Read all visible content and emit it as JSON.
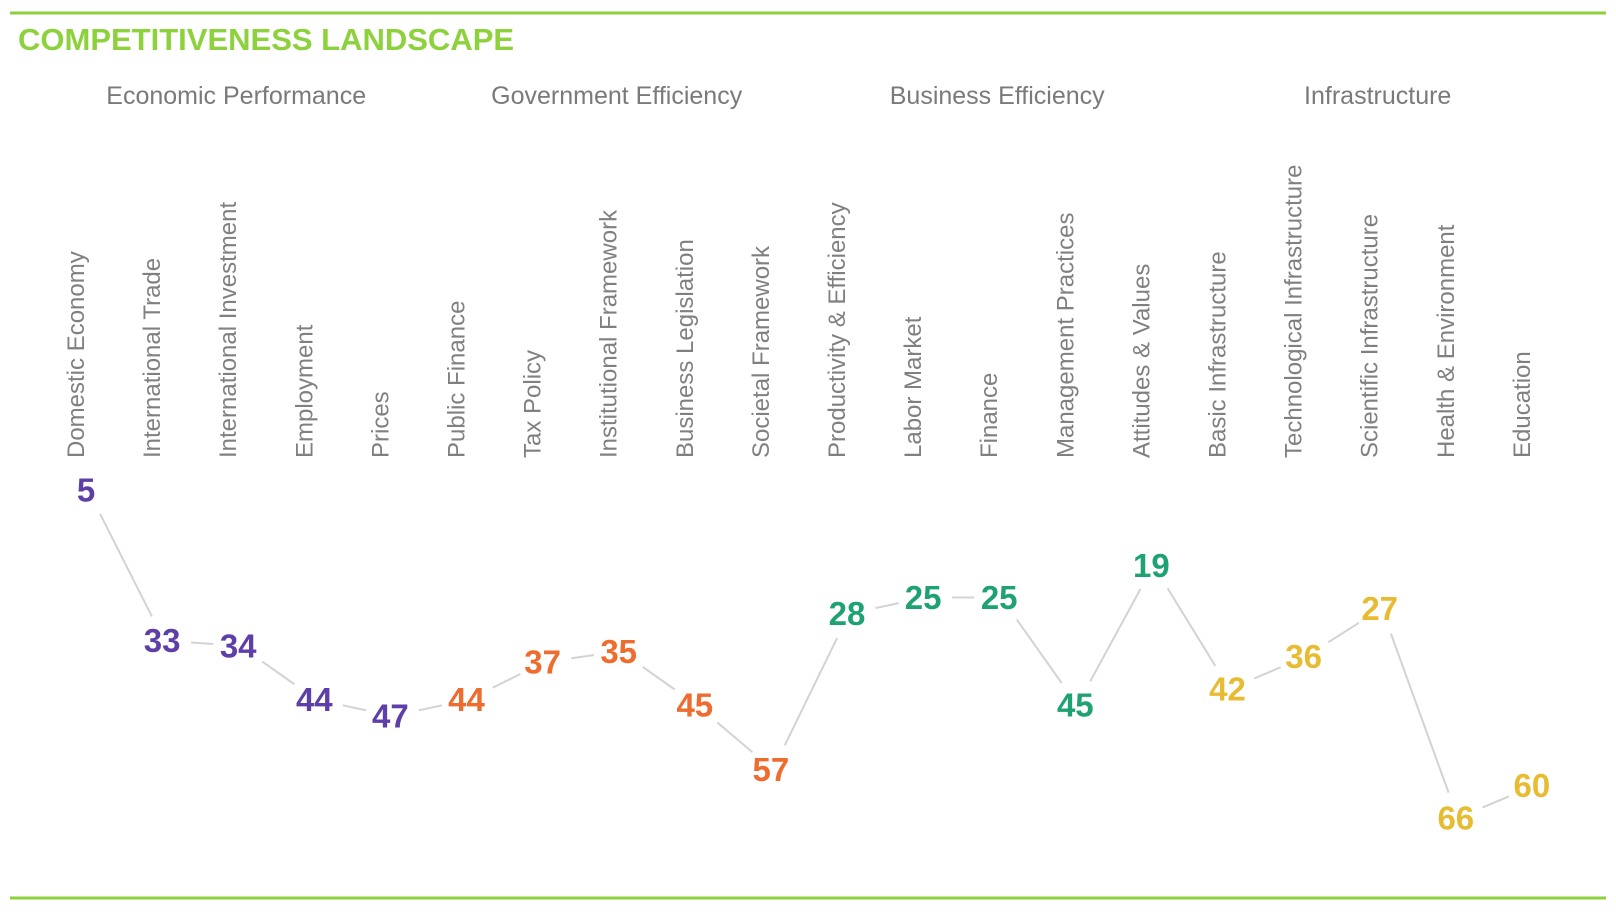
{
  "title": "COMPETITIVENESS LANDSCAPE",
  "colors": {
    "accent": "#8DD13D",
    "connector": "#D3D3D3",
    "economic": "#5E3FA8",
    "government": "#EE6C2E",
    "business": "#1FA272",
    "infrastructure": "#E8BC32"
  },
  "chart_data": {
    "type": "line",
    "title": "COMPETITIVENESS LANDSCAPE",
    "y_reversed": true,
    "ylim": [
      0,
      70
    ],
    "grid": false,
    "groups": [
      {
        "name": "Economic Performance",
        "color_key": "economic"
      },
      {
        "name": "Government Efficiency",
        "color_key": "government"
      },
      {
        "name": "Business Efficiency",
        "color_key": "business"
      },
      {
        "name": "Infrastructure",
        "color_key": "infrastructure"
      }
    ],
    "categories": [
      {
        "label": "Domestic Economy",
        "value": 5,
        "group": 0
      },
      {
        "label": "International Trade",
        "value": 33,
        "group": 0
      },
      {
        "label": "International Investment",
        "value": 34,
        "group": 0
      },
      {
        "label": "Employment",
        "value": 44,
        "group": 0
      },
      {
        "label": "Prices",
        "value": 47,
        "group": 0
      },
      {
        "label": "Public Finance",
        "value": 44,
        "group": 1
      },
      {
        "label": "Tax Policy",
        "value": 37,
        "group": 1
      },
      {
        "label": "Institutional Framework",
        "value": 35,
        "group": 1
      },
      {
        "label": "Business Legislation",
        "value": 45,
        "group": 1
      },
      {
        "label": "Societal Framework",
        "value": 57,
        "group": 1
      },
      {
        "label": "Productivity & Efficiency",
        "value": 28,
        "group": 2
      },
      {
        "label": "Labor Market",
        "value": 25,
        "group": 2
      },
      {
        "label": "Finance",
        "value": 25,
        "group": 2
      },
      {
        "label": "Management Practices",
        "value": 45,
        "group": 2
      },
      {
        "label": "Attitudes & Values",
        "value": 19,
        "group": 2
      },
      {
        "label": "Basic Infrastructure",
        "value": 42,
        "group": 3
      },
      {
        "label": "Technological Infrastructure",
        "value": 36,
        "group": 3
      },
      {
        "label": "Scientific Infrastructure",
        "value": 27,
        "group": 3
      },
      {
        "label": "Health & Environment",
        "value": 66,
        "group": 3
      },
      {
        "label": "Education",
        "value": 60,
        "group": 3
      }
    ]
  }
}
